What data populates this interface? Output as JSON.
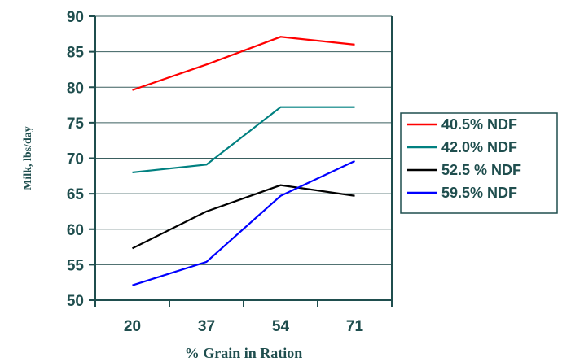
{
  "chart_data": {
    "type": "line",
    "xlabel": "% Grain in Ration",
    "ylabel": "Milk, lbs/day",
    "categories": [
      "20",
      "37",
      "54",
      "71"
    ],
    "ylim": [
      50,
      90
    ],
    "yticks": [
      "50",
      "55",
      "60",
      "65",
      "70",
      "75",
      "80",
      "85",
      "90"
    ],
    "grid": "horizontal",
    "legend_position": "right",
    "series": [
      {
        "name": "40.5% NDF",
        "color": "#ff0000",
        "values": [
          79.6,
          83.2,
          87.1,
          86.0
        ]
      },
      {
        "name": "42.0% NDF",
        "color": "#008080",
        "values": [
          68.0,
          69.1,
          77.2,
          77.2
        ]
      },
      {
        "name": "52.5 % NDF",
        "color": "#000000",
        "values": [
          57.3,
          62.5,
          66.2,
          64.7
        ]
      },
      {
        "name": "59.5% NDF",
        "color": "#0000ff",
        "values": [
          52.1,
          55.4,
          64.7,
          69.6
        ]
      }
    ]
  }
}
